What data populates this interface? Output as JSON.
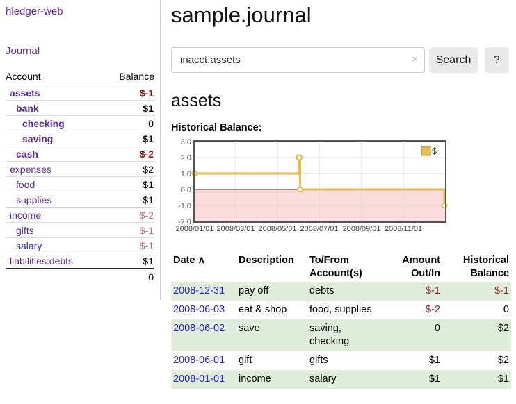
{
  "app": {
    "title": "hledger-web"
  },
  "sidebar": {
    "journal_link": "Journal",
    "accounts_header": {
      "account": "Account",
      "balance": "Balance"
    },
    "accounts": [
      {
        "name": "assets",
        "balance": "$-1",
        "depth": 1,
        "bold": true,
        "balance_style": "negative-strong",
        "link_style": "purple"
      },
      {
        "name": "bank",
        "balance": "$1",
        "depth": 2,
        "bold": true,
        "balance_style": "normal",
        "link_style": "purple"
      },
      {
        "name": "checking",
        "balance": "0",
        "depth": 3,
        "bold": true,
        "balance_style": "normal",
        "link_style": "purple"
      },
      {
        "name": "saving",
        "balance": "$1",
        "depth": 3,
        "bold": true,
        "balance_style": "normal",
        "link_style": "purple"
      },
      {
        "name": "cash",
        "balance": "$-2",
        "depth": 2,
        "bold": true,
        "balance_style": "negative-strong",
        "link_style": "purple"
      },
      {
        "name": "expenses",
        "balance": "$2",
        "depth": 1,
        "bold": false,
        "balance_style": "normal",
        "link_style": "purple"
      },
      {
        "name": "food",
        "balance": "$1",
        "depth": 2,
        "bold": false,
        "balance_style": "normal",
        "link_style": "purple"
      },
      {
        "name": "supplies",
        "balance": "$1",
        "depth": 2,
        "bold": false,
        "balance_style": "normal",
        "link_style": "purple"
      },
      {
        "name": "income",
        "balance": "$-2",
        "depth": 1,
        "bold": false,
        "balance_style": "negative-soft",
        "link_style": "purple"
      },
      {
        "name": "gifts",
        "balance": "$-1",
        "depth": 2,
        "bold": false,
        "balance_style": "negative-soft",
        "link_style": "purple"
      },
      {
        "name": "salary",
        "balance": "$-1",
        "depth": 2,
        "bold": false,
        "balance_style": "negative-soft",
        "link_style": "blue"
      },
      {
        "name": "liabilities:debts",
        "balance": "$1",
        "depth": 1,
        "bold": false,
        "balance_style": "normal",
        "link_style": "purple"
      }
    ],
    "total": "0"
  },
  "header": {
    "title": "sample.journal"
  },
  "search": {
    "value": "inacct:assets",
    "clear_icon": "×",
    "button": "Search",
    "help_button": "?"
  },
  "account_page": {
    "heading": "assets",
    "chart_label": "Historical Balance:"
  },
  "chart_data": {
    "type": "line",
    "step": true,
    "title": "Historical Balance:",
    "series": [
      {
        "name": "$",
        "points": [
          [
            "2008-01-01",
            1
          ],
          [
            "2008-06-01",
            2
          ],
          [
            "2008-06-02",
            2
          ],
          [
            "2008-06-03",
            0
          ],
          [
            "2008-12-31",
            -1
          ]
        ]
      }
    ],
    "x_range": [
      "2008-01-01",
      "2009-01-01"
    ],
    "ylim": [
      -2,
      3
    ],
    "y_ticks": [
      "3.0",
      "2.0",
      "1.0",
      "0.0",
      "-1.0",
      "-2.0"
    ],
    "x_ticks": [
      "2008/01/01",
      "2008/03/01",
      "2008/05/01",
      "2008/07/01",
      "2008/09/01",
      "2008/11/01"
    ],
    "grid": true,
    "legend_position": "top-right",
    "line_color": "#e3bb4e",
    "marker_fill": "#fffdf5",
    "zero_line_color": "#8b0000",
    "negative_region_color": "#fbdcdc",
    "border_color": "#545454"
  },
  "register": {
    "columns": [
      {
        "label": "Date",
        "sort_icon": "∧"
      },
      {
        "label": "Description"
      },
      {
        "label": "To/From Account(s)"
      },
      {
        "label": "Amount Out/In"
      },
      {
        "label": "Historical Balance"
      }
    ],
    "rows": [
      {
        "date": "2008-12-31",
        "description": "pay off",
        "accounts": "debts",
        "amount": "$-1",
        "balance": "$-1"
      },
      {
        "date": "2008-06-03",
        "description": "eat & shop",
        "accounts": "food, supplies",
        "amount": "$-2",
        "balance": "0"
      },
      {
        "date": "2008-06-02",
        "description": "save",
        "accounts": "saving, checking",
        "amount": "0",
        "balance": "$2"
      },
      {
        "date": "2008-06-01",
        "description": "gift",
        "accounts": "gifts",
        "amount": "$1",
        "balance": "$2"
      },
      {
        "date": "2008-01-01",
        "description": "income",
        "accounts": "salary",
        "amount": "$1",
        "balance": "$1"
      }
    ]
  }
}
